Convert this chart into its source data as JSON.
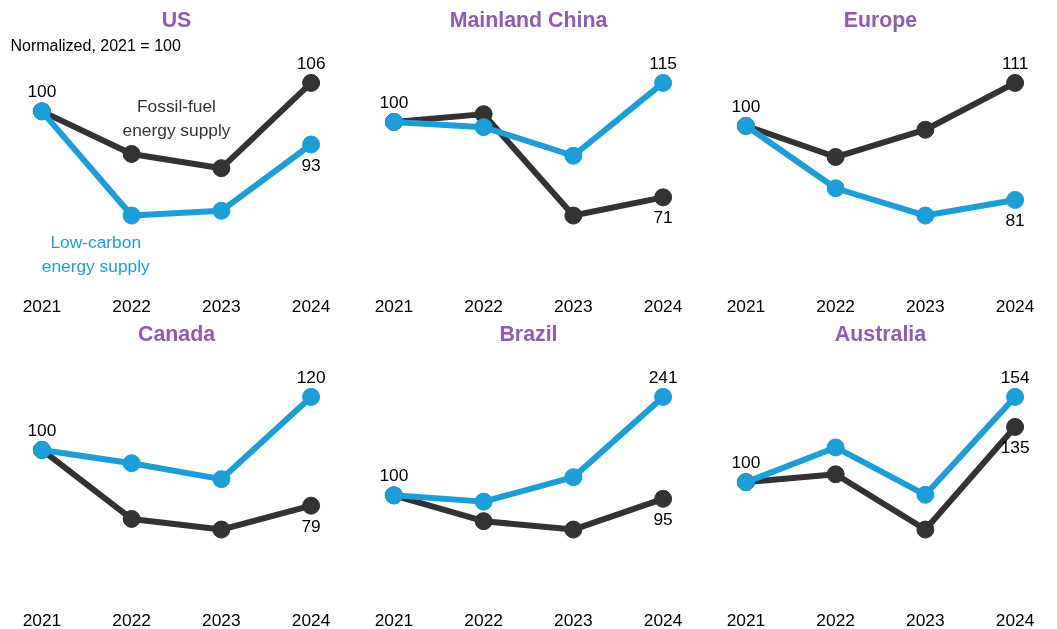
{
  "chart_data": [
    {
      "type": "line",
      "title": "US",
      "categories": [
        "2021",
        "2022",
        "2023",
        "2024"
      ],
      "marker": "circle",
      "annotations": [
        "Normalized, 2021 = 100"
      ],
      "series": [
        {
          "name": "Fossil-fuel energy supply",
          "color": "#333333",
          "values": [
            100,
            91,
            88,
            106
          ],
          "value_labels": [
            "100",
            null,
            null,
            "106"
          ]
        },
        {
          "name": "Low-carbon energy supply",
          "color": "#1a9fdb",
          "values": [
            100,
            78,
            79,
            93
          ],
          "value_labels": [
            null,
            null,
            null,
            "93"
          ]
        }
      ]
    },
    {
      "type": "line",
      "title": "Mainland China",
      "categories": [
        "2021",
        "2022",
        "2023",
        "2024"
      ],
      "marker": "circle",
      "series": [
        {
          "color": "#333333",
          "values": [
            100,
            103,
            64,
            71
          ],
          "value_labels": [
            "100",
            null,
            null,
            "71"
          ]
        },
        {
          "color": "#1a9fdb",
          "values": [
            100,
            98,
            87,
            115
          ],
          "value_labels": [
            null,
            null,
            null,
            "115"
          ]
        }
      ]
    },
    {
      "type": "line",
      "title": "Europe",
      "categories": [
        "2021",
        "2022",
        "2023",
        "2024"
      ],
      "marker": "circle",
      "series": [
        {
          "color": "#333333",
          "values": [
            100,
            92,
            99,
            111
          ],
          "value_labels": [
            "100",
            null,
            null,
            "111"
          ]
        },
        {
          "color": "#1a9fdb",
          "values": [
            100,
            84,
            77,
            81
          ],
          "value_labels": [
            null,
            null,
            null,
            "81"
          ]
        }
      ]
    },
    {
      "type": "line",
      "title": "Canada",
      "categories": [
        "2021",
        "2022",
        "2023",
        "2024"
      ],
      "marker": "circle",
      "series": [
        {
          "color": "#333333",
          "values": [
            100,
            74,
            70,
            79
          ],
          "value_labels": [
            "100",
            null,
            null,
            "79"
          ]
        },
        {
          "color": "#1a9fdb",
          "values": [
            100,
            95,
            89,
            120
          ],
          "value_labels": [
            null,
            null,
            null,
            "120"
          ]
        }
      ]
    },
    {
      "type": "line",
      "title": "Brazil",
      "categories": [
        "2021",
        "2022",
        "2023",
        "2024"
      ],
      "marker": "circle",
      "series": [
        {
          "color": "#333333",
          "values": [
            100,
            63,
            51,
            95
          ],
          "value_labels": [
            "100",
            null,
            null,
            "95"
          ]
        },
        {
          "color": "#1a9fdb",
          "values": [
            100,
            91,
            126,
            241
          ],
          "value_labels": [
            null,
            null,
            null,
            "241"
          ]
        }
      ]
    },
    {
      "type": "line",
      "title": "Australia",
      "categories": [
        "2021",
        "2022",
        "2023",
        "2024"
      ],
      "marker": "circle",
      "series": [
        {
          "color": "#333333",
          "values": [
            100,
            105,
            70,
            135
          ],
          "value_labels": [
            "100",
            null,
            null,
            "135"
          ]
        },
        {
          "color": "#1a9fdb",
          "values": [
            100,
            122,
            92,
            154
          ],
          "value_labels": [
            null,
            null,
            null,
            "154"
          ]
        }
      ]
    }
  ]
}
